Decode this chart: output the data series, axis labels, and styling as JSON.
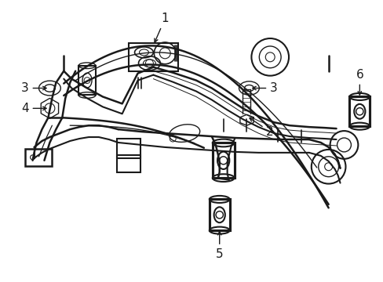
{
  "bg_color": "#ffffff",
  "line_color": "#1a1a1a",
  "fig_width": 4.89,
  "fig_height": 3.6,
  "dpi": 100,
  "lw": 1.0
}
